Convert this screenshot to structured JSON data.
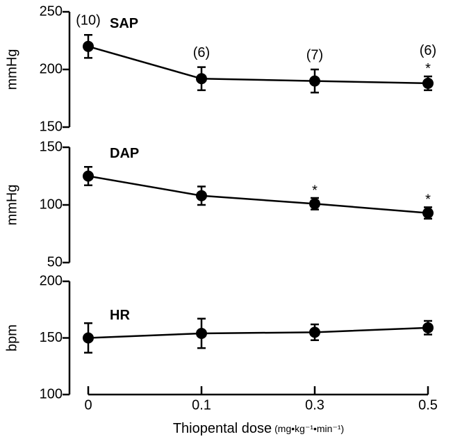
{
  "chart_data": [
    {
      "type": "line",
      "label": "SAP",
      "ylabel": "mmHg",
      "ylim": [
        150,
        250
      ],
      "yticks": [
        150,
        200,
        250
      ],
      "values": [
        220,
        192,
        190,
        188
      ],
      "errors": [
        10,
        10,
        10,
        6
      ],
      "n_labels": [
        "(10)",
        "(6)",
        "(7)",
        "(6)"
      ],
      "significance": [
        null,
        null,
        null,
        "*"
      ]
    },
    {
      "type": "line",
      "label": "DAP",
      "ylabel": "mmHg",
      "ylim": [
        50,
        150
      ],
      "yticks": [
        50,
        100,
        150
      ],
      "values": [
        125,
        108,
        101,
        93
      ],
      "errors": [
        8,
        8,
        5,
        5
      ],
      "significance": [
        null,
        null,
        "*",
        "*"
      ]
    },
    {
      "type": "line",
      "label": "HR",
      "ylabel": "bpm",
      "ylim": [
        100,
        200
      ],
      "yticks": [
        100,
        150,
        200
      ],
      "values": [
        150,
        154,
        155,
        159
      ],
      "errors": [
        13,
        13,
        7,
        6
      ],
      "categories": [
        "0",
        "0.1",
        "0.3",
        "0.5"
      ],
      "xlabel": "Thiopental dose",
      "xlabel_unit": "(mg•kg⁻¹•min⁻¹)"
    }
  ]
}
